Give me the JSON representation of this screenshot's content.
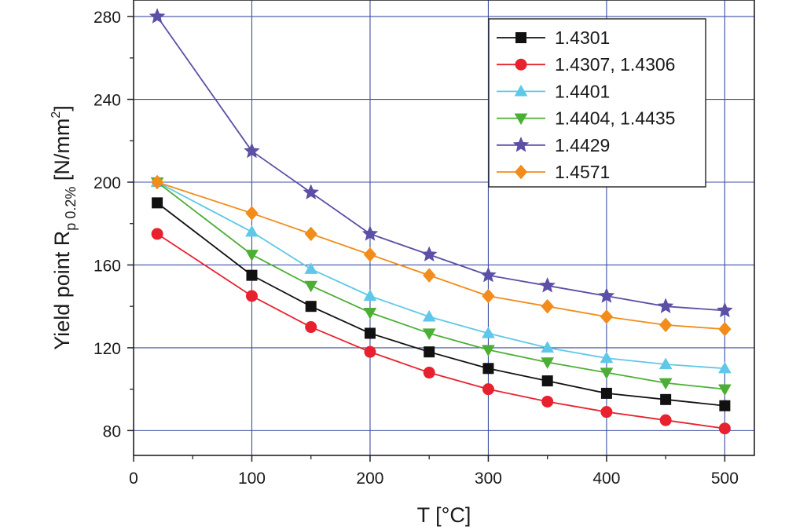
{
  "chart_data": {
    "type": "line",
    "xlabel": "T [°C]",
    "ylabel": {
      "main": "Yield point R",
      "subscript": "p 0.2%",
      "unit_open": " [N/mm",
      "unit_sup": "2",
      "unit_close": "]"
    },
    "xlim": [
      0,
      525
    ],
    "ylim": [
      68,
      288
    ],
    "xticks": [
      0,
      100,
      200,
      300,
      400,
      500
    ],
    "yticks": [
      80,
      120,
      160,
      200,
      240,
      280
    ],
    "grid": true,
    "legend_position": "top-right",
    "x": [
      20,
      100,
      150,
      200,
      250,
      300,
      350,
      400,
      450,
      500
    ],
    "series": [
      {
        "name": "1.4301",
        "color": "#111111",
        "marker": "square",
        "values": [
          190,
          155,
          140,
          127,
          118,
          110,
          104,
          98,
          95,
          92
        ]
      },
      {
        "name": "1.4307, 1.4306",
        "color": "#e8212e",
        "marker": "circle",
        "values": [
          175,
          145,
          130,
          118,
          108,
          100,
          94,
          89,
          85,
          81
        ]
      },
      {
        "name": "1.4401",
        "color": "#5fc8e8",
        "marker": "triangle-up",
        "values": [
          200,
          176,
          158,
          145,
          135,
          127,
          120,
          115,
          112,
          110
        ]
      },
      {
        "name": "1.4404, 1.4435",
        "color": "#4caf35",
        "marker": "triangle-down",
        "values": [
          200,
          165,
          150,
          137,
          127,
          119,
          113,
          108,
          103,
          100
        ]
      },
      {
        "name": "1.4429",
        "color": "#5b4fa6",
        "marker": "star",
        "values": [
          280,
          215,
          195,
          175,
          165,
          155,
          150,
          145,
          140,
          138
        ]
      },
      {
        "name": "1.4571",
        "color": "#f28c1b",
        "marker": "diamond",
        "values": [
          200,
          185,
          175,
          165,
          155,
          145,
          140,
          135,
          131,
          129
        ]
      }
    ]
  }
}
